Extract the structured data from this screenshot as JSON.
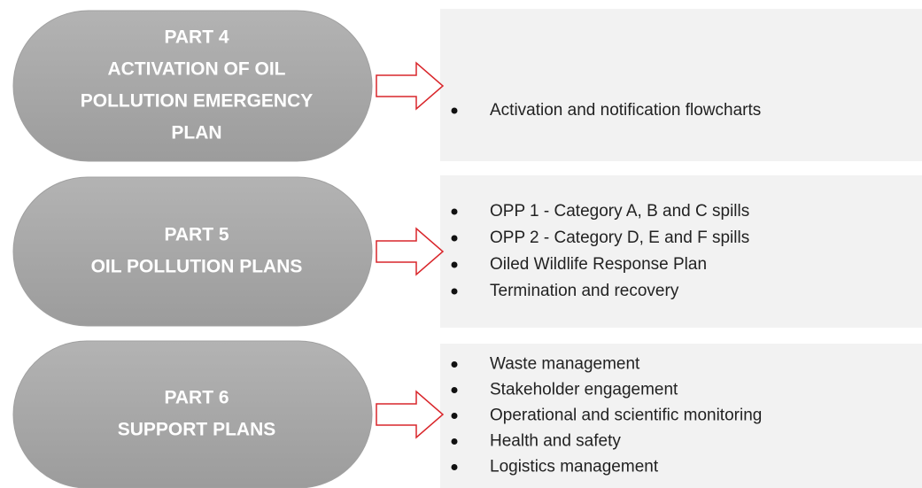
{
  "parts": [
    {
      "title_lines": [
        "PART 4",
        "ACTIVATION OF OIL",
        "POLLUTION EMERGENCY",
        "PLAN"
      ],
      "items": [
        "Activation and notification flowcharts"
      ]
    },
    {
      "title_lines": [
        "PART 5",
        "OIL POLLUTION PLANS"
      ],
      "items": [
        "OPP 1 - Category A, B and C spills",
        "OPP 2 - Category D, E and F spills",
        "Oiled Wildlife Response Plan",
        "Termination and recovery"
      ]
    },
    {
      "title_lines": [
        "PART 6",
        "SUPPORT PLANS"
      ],
      "items": [
        "Waste management",
        "Stakeholder engagement",
        "Operational and scientific monitoring",
        "Health and safety",
        "Logistics management"
      ]
    }
  ]
}
